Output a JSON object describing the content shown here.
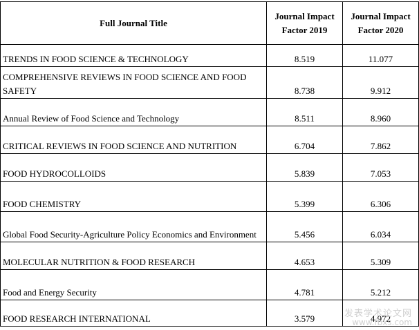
{
  "table": {
    "headers": {
      "title": "Full Journal Title",
      "jif2019": "Journal Impact Factor 2019",
      "jif2020": "Journal Impact Factor 2020"
    },
    "rows": [
      {
        "title": "TRENDS IN FOOD SCIENCE & TECHNOLOGY",
        "jif2019": "8.519",
        "jif2020": "11.077"
      },
      {
        "title": "COMPREHENSIVE REVIEWS IN FOOD SCIENCE AND FOOD SAFETY",
        "jif2019": "8.738",
        "jif2020": "9.912"
      },
      {
        "title": "Annual Review of Food Science and Technology",
        "jif2019": "8.511",
        "jif2020": "8.960"
      },
      {
        "title": "CRITICAL REVIEWS IN FOOD SCIENCE AND NUTRITION",
        "jif2019": "6.704",
        "jif2020": "7.862"
      },
      {
        "title": "FOOD HYDROCOLLOIDS",
        "jif2019": "5.839",
        "jif2020": "7.053"
      },
      {
        "title": "FOOD CHEMISTRY",
        "jif2019": "5.399",
        "jif2020": "6.306"
      },
      {
        "title": "Global Food Security-Agriculture Policy Economics and Environment",
        "jif2019": "5.456",
        "jif2020": "6.034"
      },
      {
        "title": "MOLECULAR NUTRITION & FOOD RESEARCH",
        "jif2019": "4.653",
        "jif2020": "5.309"
      },
      {
        "title": "Food and Energy Security",
        "jif2019": "4.781",
        "jif2020": "5.212"
      },
      {
        "title": "FOOD RESEARCH INTERNATIONAL",
        "jif2019": "3.579",
        "jif2020": "4.972"
      }
    ]
  },
  "watermark": {
    "text": "发表学术论文网",
    "url": "www.fbxs.com"
  }
}
